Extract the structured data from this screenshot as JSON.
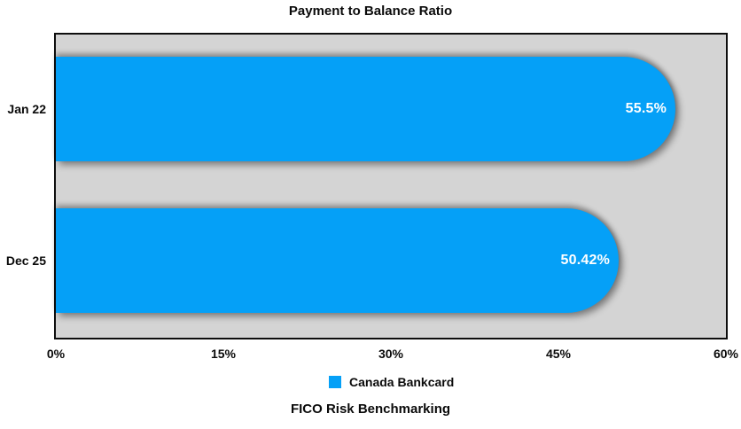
{
  "chart_data": {
    "type": "bar",
    "orientation": "horizontal",
    "title": "Payment to Balance Ratio",
    "footer": "FICO Risk Benchmarking",
    "categories": [
      "Jan 22",
      "Dec 25"
    ],
    "series": [
      {
        "name": "Canada Bankcard",
        "values": [
          55.5,
          50.42
        ],
        "value_labels": [
          "55.5%",
          "50.42%"
        ],
        "color": "#05a0f7"
      }
    ],
    "x_ticks": [
      {
        "label": "0%",
        "value": 0
      },
      {
        "label": "15%",
        "value": 15
      },
      {
        "label": "30%",
        "value": 30
      },
      {
        "label": "45%",
        "value": 45
      },
      {
        "label": "60%",
        "value": 60
      }
    ],
    "xlim": [
      0,
      60
    ],
    "xlabel": "",
    "ylabel": "",
    "grid": false,
    "plot_background": "#d4d4d4",
    "legend": {
      "position": "bottom",
      "entries": [
        {
          "label": "Canada Bankcard",
          "color": "#05a0f7"
        }
      ]
    }
  }
}
